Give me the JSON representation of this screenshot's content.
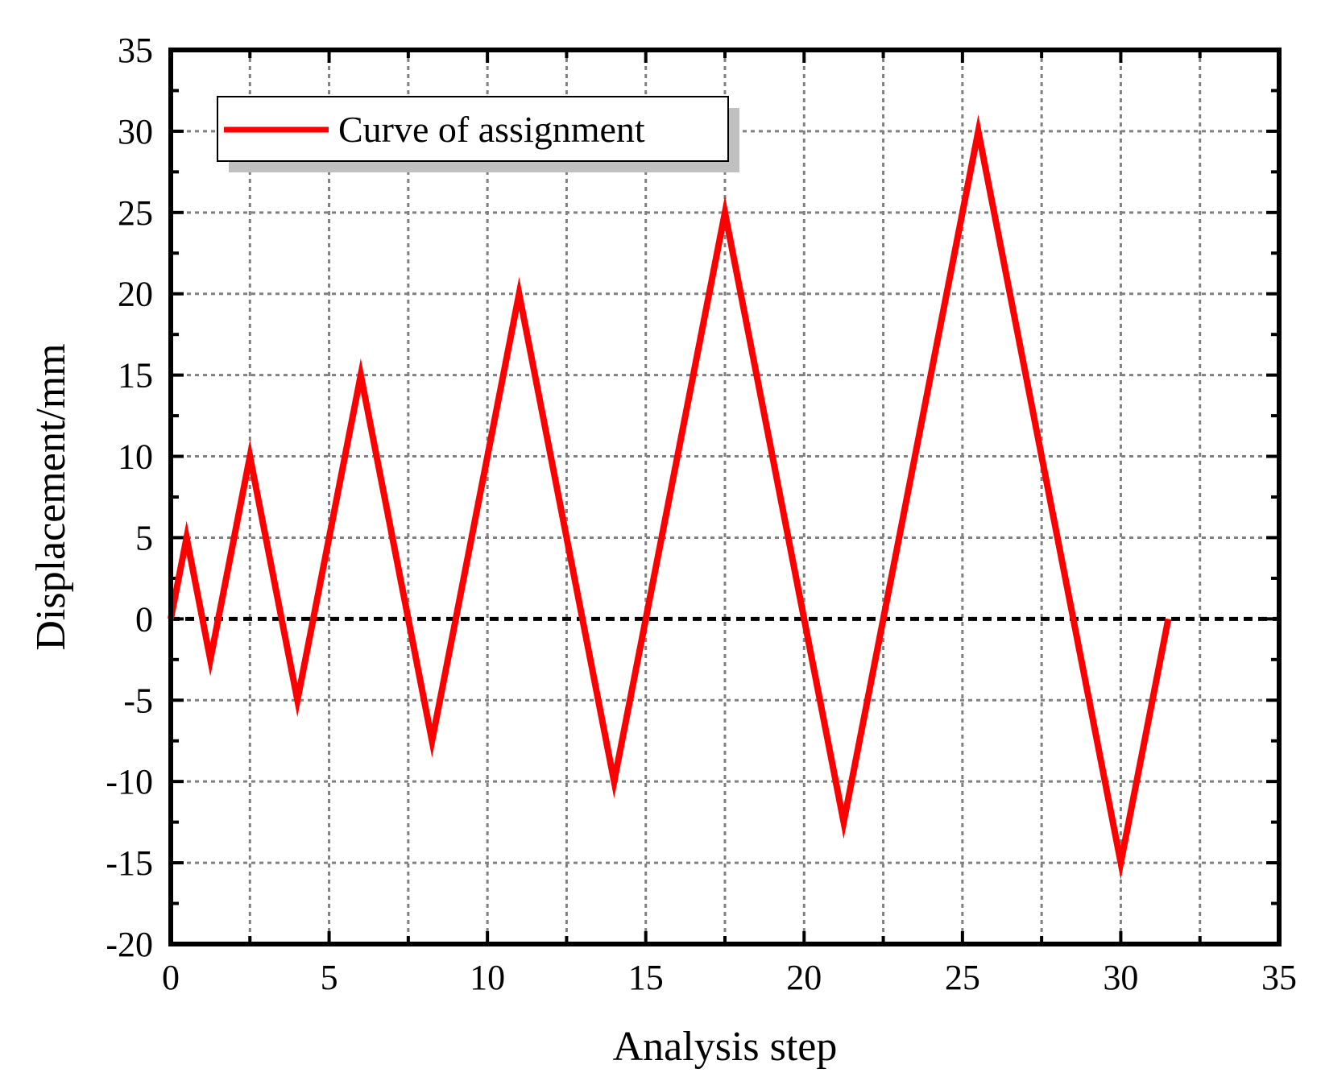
{
  "chart_data": {
    "type": "line",
    "xlabel": "Analysis step",
    "ylabel": "Displacement/mm",
    "xlim": [
      0,
      35
    ],
    "ylim": [
      -20,
      35
    ],
    "xticks": [
      "0",
      "5",
      "10",
      "15",
      "20",
      "25",
      "30",
      "35"
    ],
    "yticks": [
      "35",
      "30",
      "25",
      "20",
      "15",
      "10",
      "5",
      "0",
      "-5",
      "-10",
      "-15",
      "-20"
    ],
    "grid": true,
    "legend_position": "top-left",
    "series": [
      {
        "name": "Curve of assignment",
        "color": "#ff0000",
        "x": [
          0,
          0.5,
          1.25,
          2.5,
          4,
          6,
          8.25,
          11,
          14,
          17.5,
          21.25,
          25.5,
          30,
          31.5
        ],
        "y": [
          0,
          5,
          -2.5,
          10,
          -5,
          15,
          -7.5,
          20,
          -10,
          25,
          -12.5,
          30,
          -15,
          0
        ]
      }
    ],
    "reference_lines": [
      {
        "axis": "y",
        "value": 0,
        "color": "#000000",
        "style": "dashed"
      }
    ]
  }
}
